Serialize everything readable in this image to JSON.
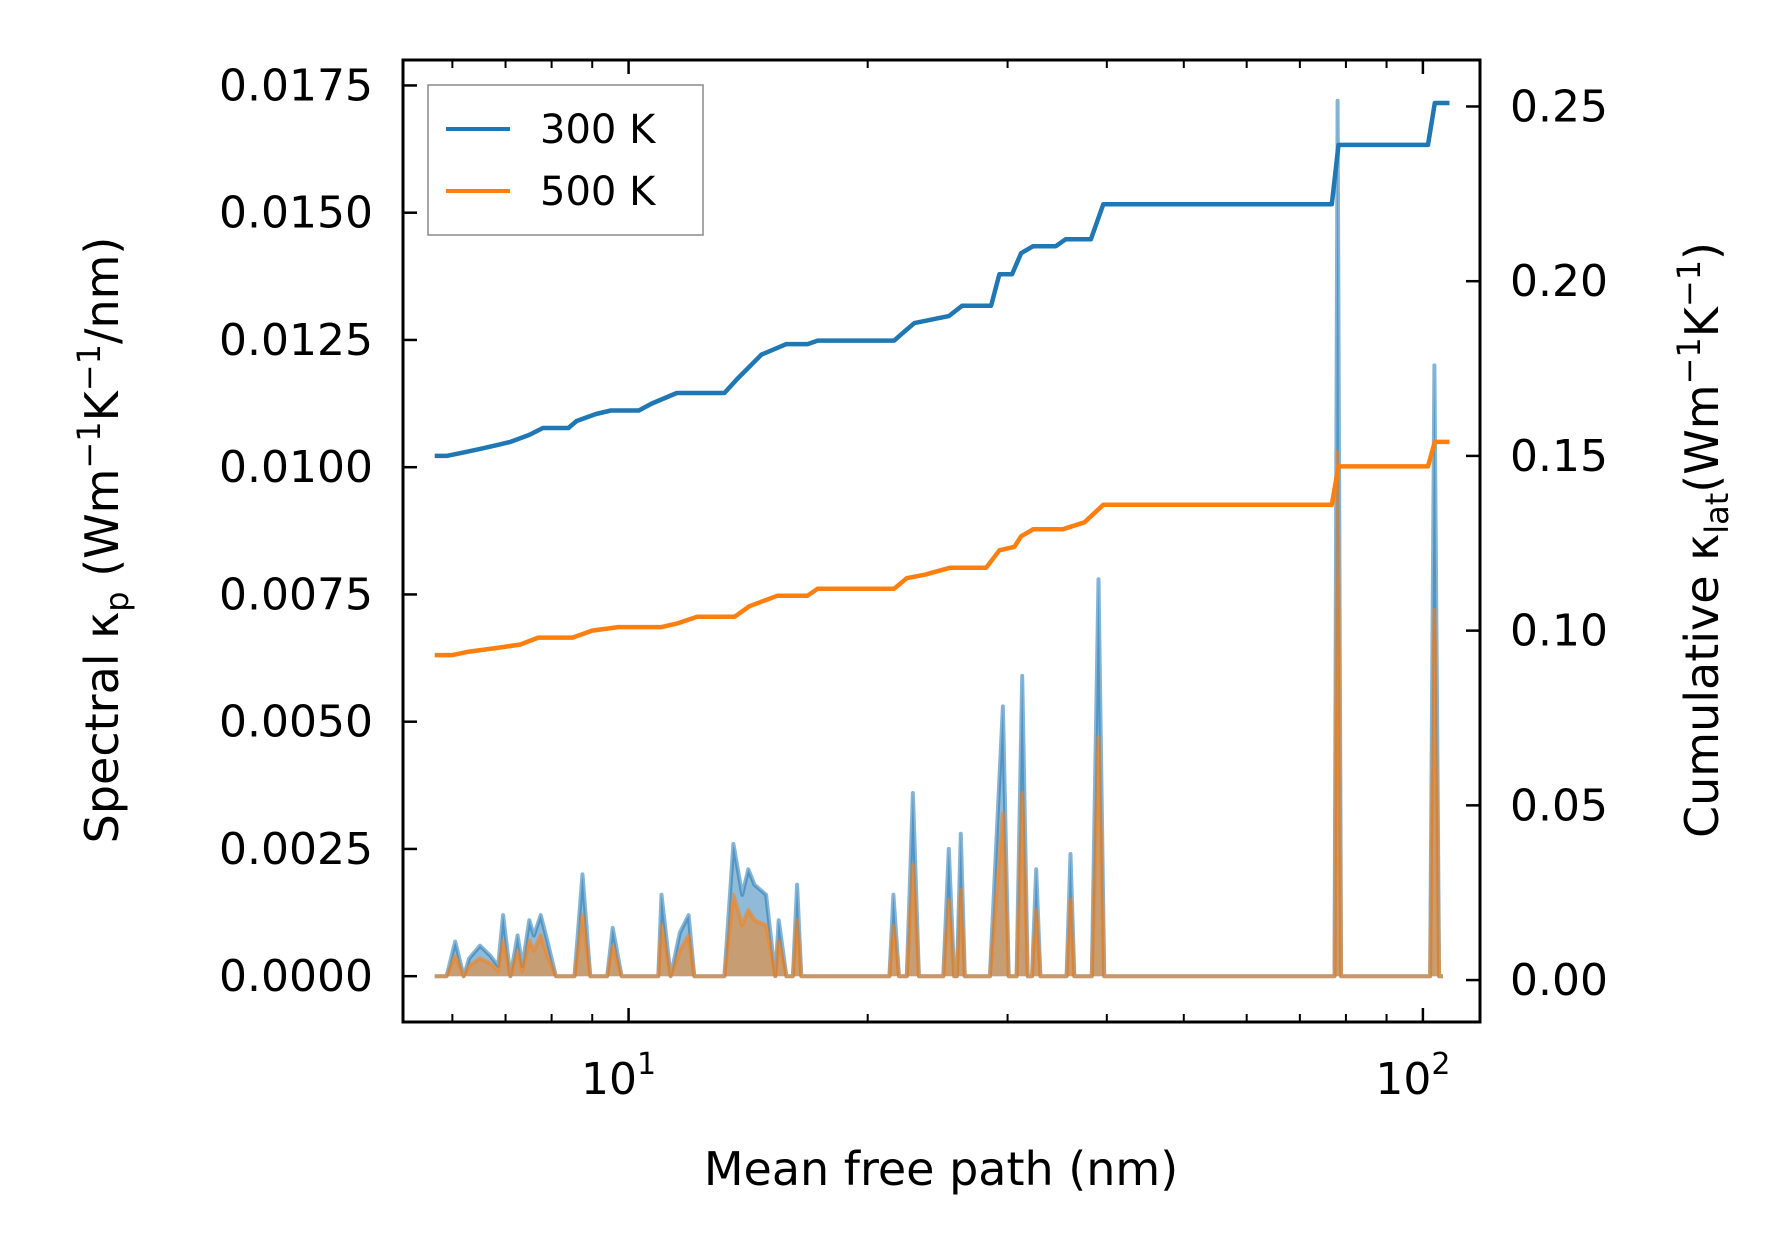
{
  "chart_data": {
    "type": "line",
    "title": "",
    "xlabel": "Mean free path (nm)",
    "x_scale": "log",
    "xlim": [
      5.2,
      118
    ],
    "x_ticks": [
      {
        "value": 10,
        "base": "10",
        "exp": "1"
      },
      {
        "value": 100,
        "base": "10",
        "exp": "2"
      }
    ],
    "y_left": {
      "label_main": "Spectral κ",
      "label_sub": "p",
      "label_unit_parts": [
        "(Wm",
        "−1",
        "K",
        "−1",
        "/nm)"
      ],
      "ylim": [
        -0.0009,
        0.018
      ],
      "ticks": [
        "0.0000",
        "0.0025",
        "0.0050",
        "0.0075",
        "0.0100",
        "0.0125",
        "0.0150",
        "0.0175"
      ]
    },
    "y_right": {
      "label_main": "Cumulative κ",
      "label_sub": "lat",
      "label_unit_parts": [
        "(Wm",
        "−1",
        "K",
        "−1",
        ")"
      ],
      "ylim": [
        -0.012,
        0.2633
      ],
      "ticks": [
        "0.00",
        "0.05",
        "0.10",
        "0.15",
        "0.20",
        "0.25"
      ]
    },
    "legend": {
      "position": "top-left",
      "entries": [
        "300 K",
        "500 K"
      ]
    },
    "series": [
      {
        "name": "300 K",
        "color": "#1f77b4",
        "axis": "right",
        "kind": "cumulative",
        "points": [
          [
            5.7,
            0.15
          ],
          [
            5.9,
            0.15
          ],
          [
            6.2,
            0.151
          ],
          [
            6.5,
            0.152
          ],
          [
            6.8,
            0.153
          ],
          [
            7.1,
            0.154
          ],
          [
            7.5,
            0.156
          ],
          [
            7.8,
            0.158
          ],
          [
            8.4,
            0.158
          ],
          [
            8.6,
            0.16
          ],
          [
            9.1,
            0.162
          ],
          [
            9.5,
            0.163
          ],
          [
            10.3,
            0.163
          ],
          [
            10.7,
            0.165
          ],
          [
            11.5,
            0.168
          ],
          [
            13.2,
            0.168
          ],
          [
            13.7,
            0.172
          ],
          [
            14.7,
            0.179
          ],
          [
            15.8,
            0.182
          ],
          [
            16.8,
            0.182
          ],
          [
            17.3,
            0.183
          ],
          [
            21.6,
            0.183
          ],
          [
            22.1,
            0.185
          ],
          [
            22.9,
            0.188
          ],
          [
            25.3,
            0.19
          ],
          [
            26.3,
            0.193
          ],
          [
            28.6,
            0.193
          ],
          [
            29.3,
            0.202
          ],
          [
            30.4,
            0.202
          ],
          [
            31.2,
            0.208
          ],
          [
            32.3,
            0.21
          ],
          [
            34.5,
            0.21
          ],
          [
            35.5,
            0.212
          ],
          [
            38.2,
            0.212
          ],
          [
            39.6,
            0.222
          ],
          [
            76.8,
            0.222
          ],
          [
            78.3,
            0.239
          ],
          [
            101.5,
            0.239
          ],
          [
            103.5,
            0.251
          ],
          [
            108.0,
            0.251
          ]
        ]
      },
      {
        "name": "500 K",
        "color": "#ff7f0e",
        "axis": "right",
        "kind": "cumulative",
        "points": [
          [
            5.7,
            0.093
          ],
          [
            6.0,
            0.093
          ],
          [
            6.3,
            0.094
          ],
          [
            6.8,
            0.095
          ],
          [
            7.3,
            0.096
          ],
          [
            7.7,
            0.098
          ],
          [
            8.5,
            0.098
          ],
          [
            9.0,
            0.1
          ],
          [
            9.7,
            0.101
          ],
          [
            11.0,
            0.101
          ],
          [
            11.5,
            0.102
          ],
          [
            12.2,
            0.104
          ],
          [
            13.6,
            0.104
          ],
          [
            14.2,
            0.107
          ],
          [
            15.4,
            0.11
          ],
          [
            16.8,
            0.11
          ],
          [
            17.3,
            0.112
          ],
          [
            21.6,
            0.112
          ],
          [
            22.4,
            0.115
          ],
          [
            23.6,
            0.116
          ],
          [
            25.4,
            0.118
          ],
          [
            28.2,
            0.118
          ],
          [
            29.3,
            0.123
          ],
          [
            30.6,
            0.124
          ],
          [
            31.2,
            0.127
          ],
          [
            32.3,
            0.129
          ],
          [
            35.2,
            0.129
          ],
          [
            37.5,
            0.131
          ],
          [
            39.6,
            0.136
          ],
          [
            76.8,
            0.136
          ],
          [
            78.3,
            0.147
          ],
          [
            101.5,
            0.147
          ],
          [
            103.5,
            0.154
          ],
          [
            108.0,
            0.154
          ]
        ]
      },
      {
        "name": "300 K spectral",
        "color": "#1f77b4",
        "axis": "left",
        "kind": "spectral-fill",
        "points": [
          [
            5.7,
            0.0
          ],
          [
            5.9,
            0.0
          ],
          [
            6.05,
            0.00068
          ],
          [
            6.2,
            0.0
          ],
          [
            6.3,
            0.00035
          ],
          [
            6.5,
            0.0006
          ],
          [
            6.7,
            0.0004
          ],
          [
            6.85,
            0.0002
          ],
          [
            6.95,
            0.0012
          ],
          [
            7.1,
            0.0
          ],
          [
            7.25,
            0.0008
          ],
          [
            7.35,
            0.0002
          ],
          [
            7.5,
            0.0011
          ],
          [
            7.6,
            0.0008
          ],
          [
            7.75,
            0.0012
          ],
          [
            7.9,
            0.0007
          ],
          [
            8.1,
            0.0
          ],
          [
            8.55,
            0.0
          ],
          [
            8.75,
            0.002
          ],
          [
            8.95,
            0.0
          ],
          [
            9.4,
            0.0
          ],
          [
            9.55,
            0.00095
          ],
          [
            9.8,
            0.0
          ],
          [
            10.9,
            0.0
          ],
          [
            11.0,
            0.0016
          ],
          [
            11.3,
            0.0
          ],
          [
            11.6,
            0.00085
          ],
          [
            11.9,
            0.0012
          ],
          [
            12.1,
            0.0
          ],
          [
            13.2,
            0.0
          ],
          [
            13.55,
            0.0026
          ],
          [
            13.9,
            0.0016
          ],
          [
            14.15,
            0.0021
          ],
          [
            14.4,
            0.0018
          ],
          [
            14.9,
            0.0016
          ],
          [
            15.3,
            0.0
          ],
          [
            15.45,
            0.0011
          ],
          [
            15.8,
            0.0
          ],
          [
            16.1,
            0.0
          ],
          [
            16.3,
            0.0018
          ],
          [
            16.5,
            0.0
          ],
          [
            21.3,
            0.0
          ],
          [
            21.55,
            0.0016
          ],
          [
            21.9,
            0.0
          ],
          [
            22.4,
            0.0
          ],
          [
            22.8,
            0.0036
          ],
          [
            23.2,
            0.0
          ],
          [
            24.9,
            0.0
          ],
          [
            25.3,
            0.0025
          ],
          [
            25.7,
            0.0
          ],
          [
            25.9,
            0.0
          ],
          [
            26.2,
            0.0028
          ],
          [
            26.5,
            0.0
          ],
          [
            28.5,
            0.0
          ],
          [
            29.6,
            0.0053
          ],
          [
            30.1,
            0.0
          ],
          [
            30.8,
            0.0
          ],
          [
            31.3,
            0.0059
          ],
          [
            31.8,
            0.0
          ],
          [
            32.2,
            0.0
          ],
          [
            32.6,
            0.0021
          ],
          [
            33.0,
            0.0
          ],
          [
            35.6,
            0.0
          ],
          [
            36.0,
            0.0024
          ],
          [
            36.4,
            0.0
          ],
          [
            38.3,
            0.0
          ],
          [
            39.05,
            0.0078
          ],
          [
            39.7,
            0.0
          ],
          [
            77.4,
            0.0
          ],
          [
            78.1,
            0.0172
          ],
          [
            78.9,
            0.0
          ],
          [
            102.1,
            0.0
          ],
          [
            103.4,
            0.012
          ],
          [
            104.8,
            0.0
          ],
          [
            106.0,
            0.0
          ]
        ]
      },
      {
        "name": "500 K spectral",
        "color": "#ff7f0e",
        "axis": "left",
        "kind": "spectral-fill",
        "points": [
          [
            5.7,
            0.0
          ],
          [
            5.9,
            0.0
          ],
          [
            6.05,
            0.0004
          ],
          [
            6.2,
            0.0
          ],
          [
            6.3,
            0.0002
          ],
          [
            6.5,
            0.00035
          ],
          [
            6.7,
            0.00025
          ],
          [
            6.85,
            0.0001
          ],
          [
            6.95,
            0.0007
          ],
          [
            7.1,
            0.0
          ],
          [
            7.25,
            0.0005
          ],
          [
            7.35,
            0.0001
          ],
          [
            7.5,
            0.0007
          ],
          [
            7.6,
            0.0005
          ],
          [
            7.75,
            0.0008
          ],
          [
            7.9,
            0.0004
          ],
          [
            8.1,
            0.0
          ],
          [
            8.55,
            0.0
          ],
          [
            8.75,
            0.0012
          ],
          [
            8.95,
            0.0
          ],
          [
            9.4,
            0.0
          ],
          [
            9.55,
            0.0006
          ],
          [
            9.8,
            0.0
          ],
          [
            10.9,
            0.0
          ],
          [
            11.0,
            0.001
          ],
          [
            11.3,
            0.0
          ],
          [
            11.6,
            0.0005
          ],
          [
            11.9,
            0.0008
          ],
          [
            12.1,
            0.0
          ],
          [
            13.2,
            0.0
          ],
          [
            13.55,
            0.0016
          ],
          [
            13.9,
            0.001
          ],
          [
            14.15,
            0.0013
          ],
          [
            14.4,
            0.0011
          ],
          [
            14.9,
            0.001
          ],
          [
            15.3,
            0.0
          ],
          [
            15.45,
            0.0007
          ],
          [
            15.8,
            0.0
          ],
          [
            16.1,
            0.0
          ],
          [
            16.3,
            0.0011
          ],
          [
            16.5,
            0.0
          ],
          [
            21.3,
            0.0
          ],
          [
            21.55,
            0.001
          ],
          [
            21.9,
            0.0
          ],
          [
            22.4,
            0.0
          ],
          [
            22.8,
            0.0022
          ],
          [
            23.2,
            0.0
          ],
          [
            24.9,
            0.0
          ],
          [
            25.3,
            0.0015
          ],
          [
            25.7,
            0.0
          ],
          [
            25.9,
            0.0
          ],
          [
            26.2,
            0.0017
          ],
          [
            26.5,
            0.0
          ],
          [
            28.5,
            0.0
          ],
          [
            29.6,
            0.0032
          ],
          [
            30.1,
            0.0
          ],
          [
            30.8,
            0.0
          ],
          [
            31.3,
            0.0036
          ],
          [
            31.8,
            0.0
          ],
          [
            32.2,
            0.0
          ],
          [
            32.6,
            0.0013
          ],
          [
            33.0,
            0.0
          ],
          [
            35.6,
            0.0
          ],
          [
            36.0,
            0.0015
          ],
          [
            36.4,
            0.0
          ],
          [
            38.3,
            0.0
          ],
          [
            39.05,
            0.0047
          ],
          [
            39.7,
            0.0
          ],
          [
            77.4,
            0.0
          ],
          [
            78.1,
            0.0103
          ],
          [
            78.9,
            0.0
          ],
          [
            102.1,
            0.0
          ],
          [
            103.4,
            0.0072
          ],
          [
            104.8,
            0.0
          ],
          [
            106.0,
            0.0
          ]
        ]
      }
    ]
  }
}
